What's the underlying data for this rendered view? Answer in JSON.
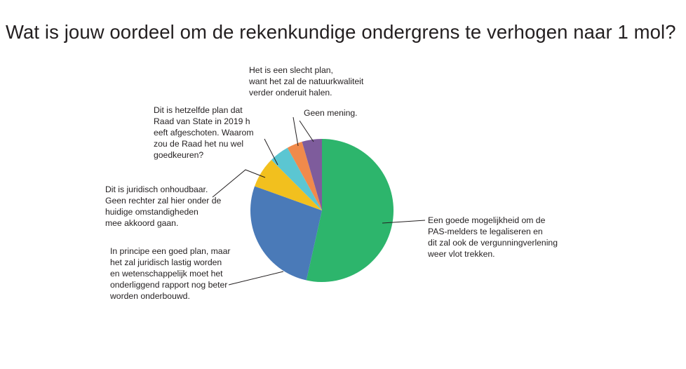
{
  "chart_data": {
    "type": "pie",
    "title": "Wat is jouw oordeel om de rekenkundige ondergrens te verhogen naar 1 mol?",
    "slices": [
      {
        "label": "Een goede mogelijkheid om de PAS-melders te legaliseren en dit zal ook de vergunningverlening weer vlot trekken.",
        "lines": [
          "Een goede mogelijkheid om de",
          "PAS-melders te legaliseren en",
          "dit zal ook de vergunningverlening",
          "weer vlot trekken."
        ],
        "value": 53.5,
        "color": "#2db56c"
      },
      {
        "label": "In principe een goed plan, maar het zal juridisch lastig worden en wetenschappelijk moet het onderliggend rapport nog beter worden onderbouwd.",
        "lines": [
          "In principe een goed plan, maar",
          "het zal juridisch lastig worden",
          "en wetenschappelijk moet het",
          "onderliggend rapport nog beter",
          "worden onderbouwd."
        ],
        "value": 27,
        "color": "#4a7ab8"
      },
      {
        "label": "Dit is juridisch onhoudbaar. Geen rechter zal hier onder de huidige omstandigheden mee akkoord gaan.",
        "lines": [
          "Dit is juridisch onhoudbaar.",
          "Geen rechter zal hier onder de",
          "huidige omstandigheden",
          "mee akkoord gaan."
        ],
        "value": 7,
        "color": "#f2c01e"
      },
      {
        "label": "Dit is hetzelfde plan dat Raad van State in 2019 h eeft afgeschoten. Waarom zou de Raad het nu wel goedkeuren?",
        "lines": [
          "Dit is hetzelfde plan dat",
          "Raad van State in 2019 h",
          "eeft afgeschoten. Waarom",
          "zou de Raad het nu wel",
          "goedkeuren?"
        ],
        "value": 4.5,
        "color": "#5bc6d2"
      },
      {
        "label": "Het is een slecht plan, want het zal de natuurkwaliteit verder onderuit halen.",
        "lines": [
          "Het is een slecht plan,",
          "want het zal de natuurkwaliteit",
          "verder onderuit halen."
        ],
        "value": 3.5,
        "color": "#f08a4b"
      },
      {
        "label": "Geen mening.",
        "lines": [
          "Geen mening."
        ],
        "value": 4.5,
        "color": "#7e5c9c"
      }
    ]
  }
}
